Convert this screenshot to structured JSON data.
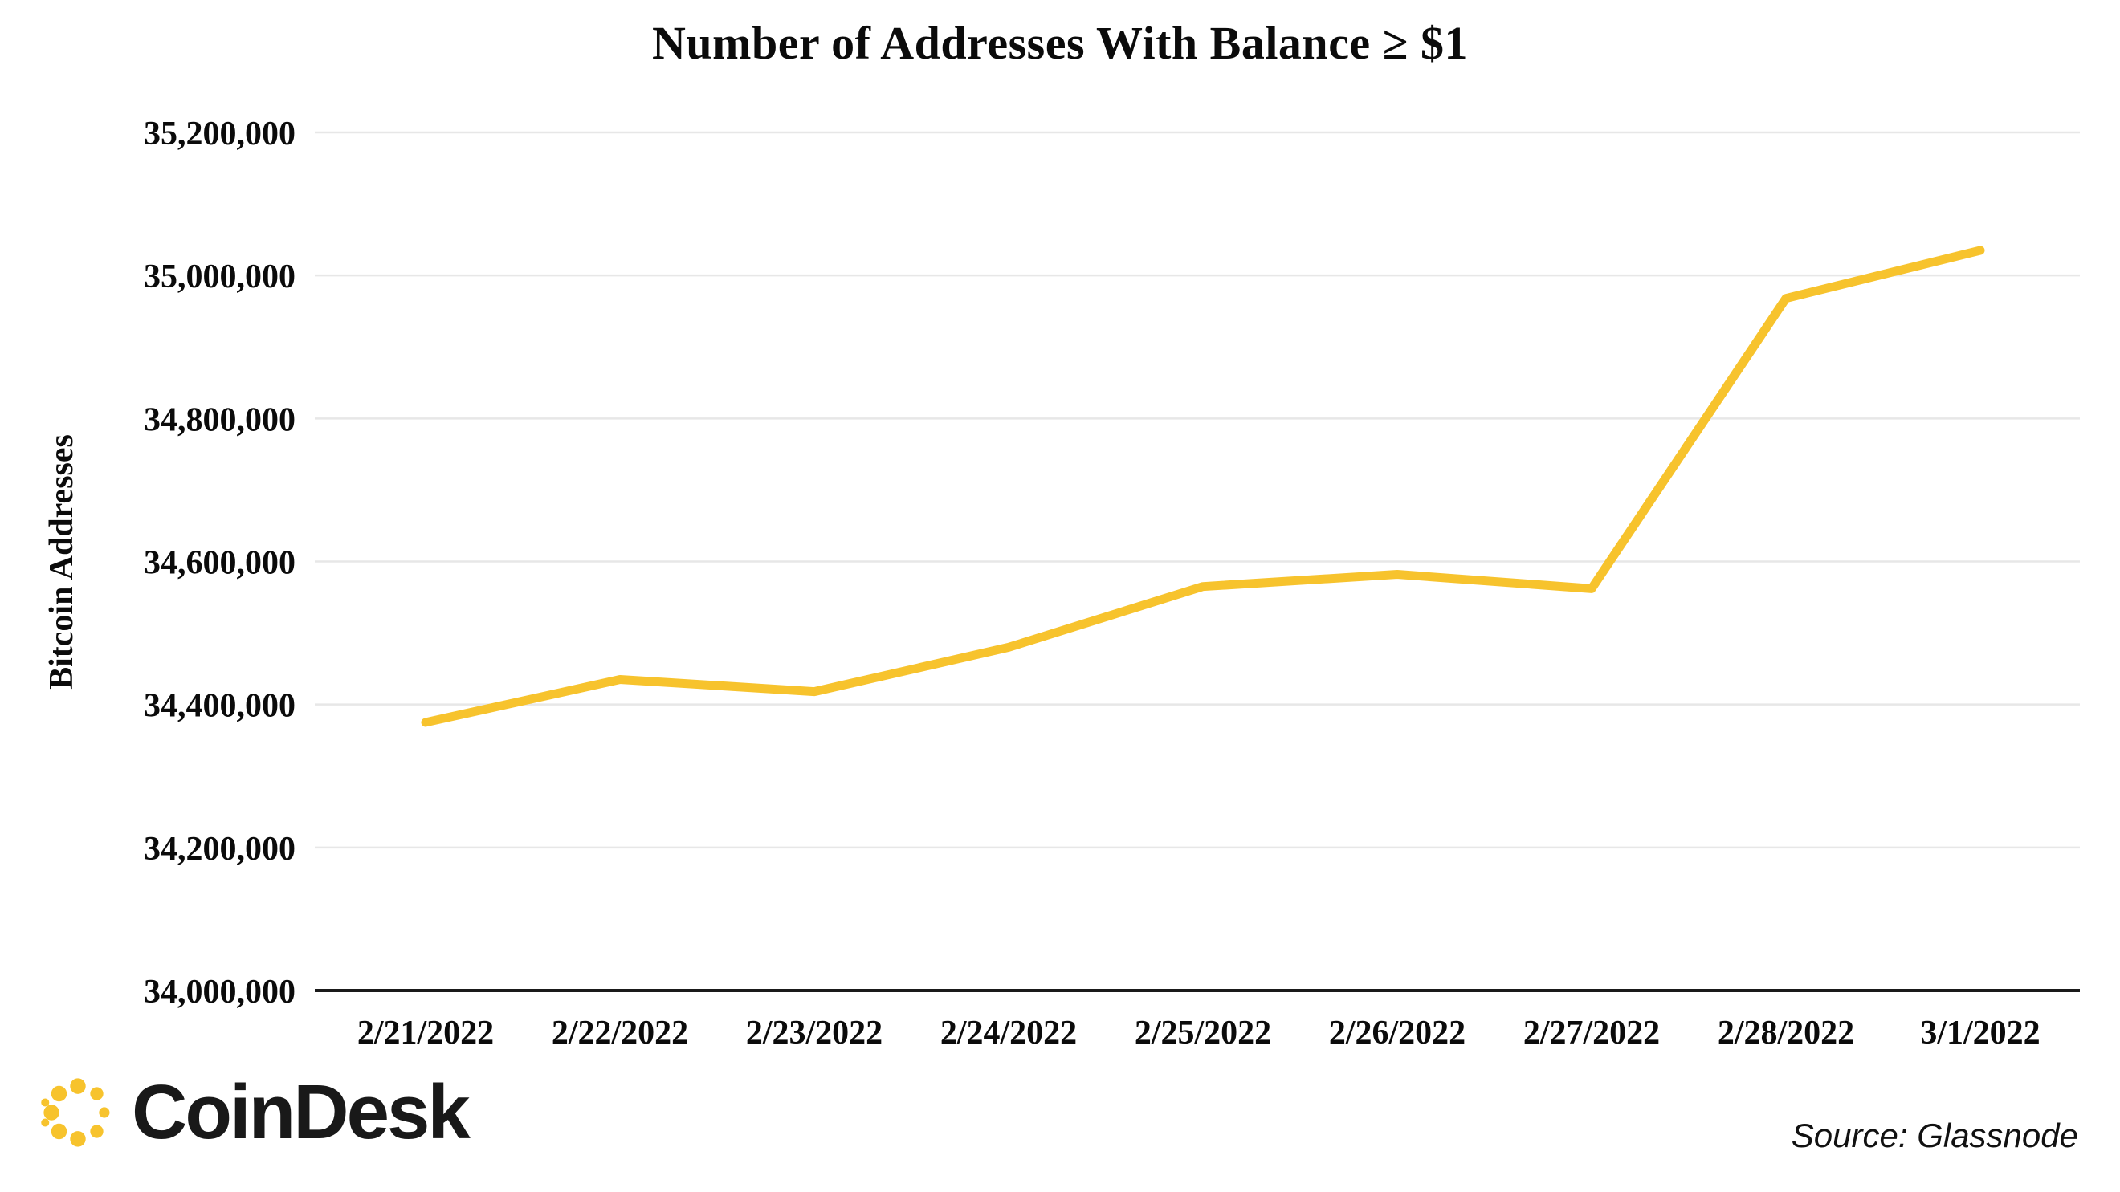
{
  "chart_data": {
    "type": "line",
    "title": "Number of Addresses With Balance ≥ $1",
    "xlabel": "",
    "ylabel": "Bitcoin Addresses",
    "x": [
      "2/21/2022",
      "2/22/2022",
      "2/23/2022",
      "2/24/2022",
      "2/25/2022",
      "2/26/2022",
      "2/27/2022",
      "2/28/2022",
      "3/1/2022"
    ],
    "values": [
      34375000,
      34435000,
      34418000,
      34480000,
      34565000,
      34582000,
      34562000,
      34968000,
      35035000
    ],
    "ylim": [
      34000000,
      35200000
    ],
    "ytick_step": 200000,
    "grid": "horizontal",
    "legend": "none",
    "line_color": "#F7C32D"
  },
  "footer": {
    "brand": "CoinDesk",
    "source": "Source: Glassnode"
  },
  "colors": {
    "accent_gold": "#F7C32D",
    "gridline": "#E7E7E7",
    "axis": "#1A1A1A",
    "text": "#0B0B0B"
  }
}
